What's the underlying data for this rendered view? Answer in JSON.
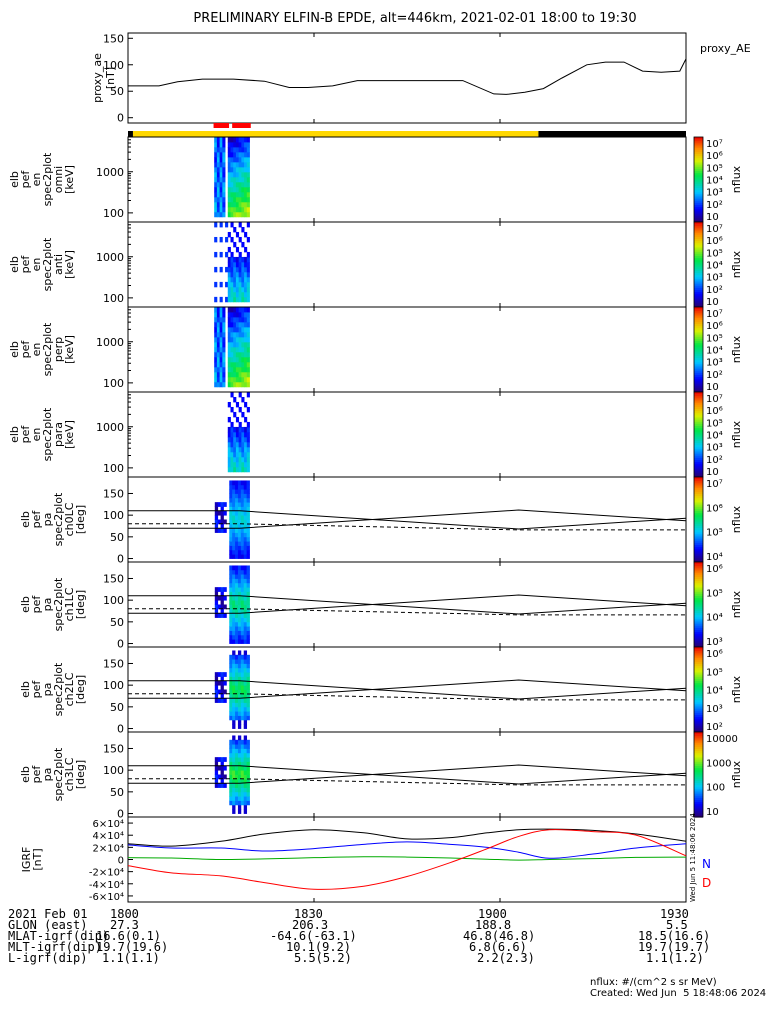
{
  "title": "PRELIMINARY ELFIN-B EPDE, alt=446km, 2021-02-01 18:00 to 19:30",
  "time_axis": {
    "start_min": 0,
    "end_min": 90,
    "ticks": [
      "1800",
      "1830",
      "1900",
      "1930"
    ]
  },
  "footer": {
    "rows": [
      {
        "label": "2021 Feb 01",
        "values": [
          "1800",
          "1830",
          "1900",
          "1930"
        ]
      },
      {
        "label": "GLON (east)",
        "values": [
          "27.3",
          "206.3",
          "188.8",
          "5.5"
        ]
      },
      {
        "label": "MLAT-igrf(dip)",
        "values": [
          "16.6(0.1)",
          "-64.6(-63.1)",
          "46.8(46.8)",
          "18.5(16.6)"
        ]
      },
      {
        "label": "MLT-igrf(dip)",
        "values": [
          "19.7(19.6)",
          "10.1(9.2)",
          "6.8(6.6)",
          "19.7(19.7)"
        ]
      },
      {
        "label": "L-igrf(dip)",
        "values": [
          "1.1(1.1)",
          "5.5(5.2)",
          "2.2(2.3)",
          "1.1(1.2)"
        ]
      }
    ],
    "units_note": "nflux: #/(cm^2 s sr MeV)",
    "created": "Created: Wed Jun  5 18:48:06 2024",
    "side_stamp": "Wed Jun  5 11:48:06 2024"
  },
  "colors": {
    "N": "#0000ff",
    "D": "#ff0000",
    "E": "#00aa00",
    "total": "#000000",
    "yellow": "#ffd800",
    "red": "#ff0000"
  },
  "chart_data": [
    {
      "type": "line",
      "name": "proxy_ae",
      "legend": "proxy_AE",
      "ylabel_lines": [
        "proxy_ae",
        "[nT]"
      ],
      "ylim": [
        -10,
        160
      ],
      "yticks": [
        "0",
        "50",
        "100",
        "150"
      ],
      "x": [
        0,
        3,
        5,
        8,
        12,
        17,
        22,
        26,
        29,
        33,
        37,
        43,
        51,
        54,
        59,
        61,
        64,
        67,
        70,
        74,
        77,
        80,
        83,
        86,
        89,
        90
      ],
      "values": [
        60,
        60,
        60,
        68,
        73,
        73,
        69,
        57,
        57,
        60,
        70,
        70,
        70,
        70,
        45,
        44,
        48,
        55,
        75,
        100,
        105,
        105,
        88,
        86,
        88,
        111
      ]
    },
    {
      "type": "bar",
      "name": "science-zone-bar",
      "segments": [
        {
          "start": 0,
          "end": 0.8,
          "color": "#000000"
        },
        {
          "start": 0.8,
          "end": 66.2,
          "color": "#ffd800"
        },
        {
          "start": 66.2,
          "end": 90,
          "color": "#000000"
        }
      ],
      "markers": [
        {
          "start": 13.8,
          "end": 16.3
        },
        {
          "start": 16.8,
          "end": 19.8
        }
      ]
    },
    {
      "type": "heatmap",
      "name": "spectrogram-omni",
      "ylabel_lines": [
        "elb",
        "pef",
        "en",
        "spec2plot",
        "omni",
        "[keV]"
      ],
      "yscale": "log",
      "ylim": [
        60,
        7000
      ],
      "yticks": [
        "100",
        "1000"
      ],
      "x_range": [
        13.9,
        19.6
      ],
      "colorbar": {
        "label": "nflux",
        "ticks": [
          "10",
          "10²",
          "10³",
          "10⁴",
          "10⁵",
          "10⁶",
          "10⁷"
        ]
      }
    },
    {
      "type": "heatmap",
      "name": "spectrogram-anti",
      "ylabel_lines": [
        "elb",
        "pef",
        "en",
        "spec2plot",
        "anti",
        "[keV]"
      ],
      "yscale": "log",
      "ylim": [
        60,
        7000
      ],
      "yticks": [
        "100",
        "1000"
      ],
      "x_range": [
        13.9,
        19.6
      ],
      "colorbar": {
        "label": "nflux",
        "ticks": [
          "10",
          "10²",
          "10³",
          "10⁴",
          "10⁵",
          "10⁶",
          "10⁷"
        ]
      }
    },
    {
      "type": "heatmap",
      "name": "spectrogram-perp",
      "ylabel_lines": [
        "elb",
        "pef",
        "en",
        "spec2plot",
        "perp",
        "[keV]"
      ],
      "yscale": "log",
      "ylim": [
        60,
        7000
      ],
      "yticks": [
        "100",
        "1000"
      ],
      "x_range": [
        13.9,
        19.6
      ],
      "colorbar": {
        "label": "nflux",
        "ticks": [
          "10",
          "10²",
          "10³",
          "10⁴",
          "10⁵",
          "10⁶",
          "10⁷"
        ]
      }
    },
    {
      "type": "heatmap",
      "name": "spectrogram-para",
      "ylabel_lines": [
        "elb",
        "pef",
        "en",
        "spec2plot",
        "para",
        "[keV]"
      ],
      "yscale": "log",
      "ylim": [
        60,
        7000
      ],
      "yticks": [
        "100",
        "1000"
      ],
      "x_range": [
        13.9,
        19.6
      ],
      "colorbar": {
        "label": "nflux",
        "ticks": [
          "10",
          "10²",
          "10³",
          "10⁴",
          "10⁵",
          "10⁶",
          "10⁷"
        ]
      }
    },
    {
      "type": "heatmap",
      "name": "pitch-angle-ch0",
      "ylabel_lines": [
        "elb",
        "pef",
        "pa",
        "spec2plot",
        "ch0LC",
        "[deg]"
      ],
      "ylim": [
        -8,
        188
      ],
      "yticks": [
        "0",
        "50",
        "100",
        "150"
      ],
      "x_range": [
        14.0,
        19.6
      ],
      "losscone_x": [
        0,
        18,
        63,
        90
      ],
      "losscone_y": [
        110,
        110,
        68,
        93
      ],
      "antilosscone_y": [
        70,
        70,
        112,
        87
      ],
      "dashed_y": [
        80,
        80,
        66,
        66
      ],
      "colorbar": {
        "label": "nflux",
        "ticks": [
          "10⁴",
          "10⁵",
          "10⁶",
          "10⁷"
        ]
      }
    },
    {
      "type": "heatmap",
      "name": "pitch-angle-ch1",
      "ylabel_lines": [
        "elb",
        "pef",
        "pa",
        "spec2plot",
        "ch1LC",
        "[deg]"
      ],
      "ylim": [
        -8,
        188
      ],
      "yticks": [
        "0",
        "50",
        "100",
        "150"
      ],
      "x_range": [
        14.0,
        19.6
      ],
      "losscone_x": [
        0,
        18,
        63,
        90
      ],
      "losscone_y": [
        110,
        110,
        68,
        93
      ],
      "antilosscone_y": [
        70,
        70,
        112,
        87
      ],
      "dashed_y": [
        80,
        80,
        66,
        66
      ],
      "colorbar": {
        "label": "nflux",
        "ticks": [
          "10³",
          "10⁴",
          "10⁵",
          "10⁶"
        ]
      }
    },
    {
      "type": "heatmap",
      "name": "pitch-angle-ch2",
      "ylabel_lines": [
        "elb",
        "pef",
        "pa",
        "spec2plot",
        "ch2LC",
        "[deg]"
      ],
      "ylim": [
        -8,
        188
      ],
      "yticks": [
        "0",
        "50",
        "100",
        "150"
      ],
      "x_range": [
        14.0,
        19.6
      ],
      "losscone_x": [
        0,
        18,
        63,
        90
      ],
      "losscone_y": [
        110,
        110,
        68,
        93
      ],
      "antilosscone_y": [
        70,
        70,
        112,
        87
      ],
      "dashed_y": [
        80,
        80,
        66,
        66
      ],
      "colorbar": {
        "label": "nflux",
        "ticks": [
          "10²",
          "10³",
          "10⁴",
          "10⁵",
          "10⁶"
        ]
      }
    },
    {
      "type": "heatmap",
      "name": "pitch-angle-ch3",
      "ylabel_lines": [
        "elb",
        "pef",
        "pa",
        "spec2plot",
        "ch3LC",
        "[deg]"
      ],
      "ylim": [
        -8,
        188
      ],
      "yticks": [
        "0",
        "50",
        "100",
        "150"
      ],
      "x_range": [
        14.0,
        19.6
      ],
      "losscone_x": [
        0,
        18,
        63,
        90
      ],
      "losscone_y": [
        110,
        110,
        68,
        93
      ],
      "antilosscone_y": [
        70,
        70,
        112,
        87
      ],
      "dashed_y": [
        80,
        80,
        66,
        66
      ],
      "colorbar": {
        "label": "nflux",
        "ticks": [
          "10",
          "100",
          "1000",
          "10000"
        ]
      }
    },
    {
      "type": "line",
      "name": "igrf",
      "ylabel_lines": [
        "IGRF",
        "[nT]"
      ],
      "ylim": [
        -70000,
        70000
      ],
      "yticks": [
        "-6×10⁴",
        "-4×10⁴",
        "-2×10⁴",
        "0",
        "2×10⁴",
        "4×10⁴",
        "6×10⁴"
      ],
      "x": [
        0,
        7,
        15,
        22,
        30,
        38,
        45,
        52,
        58,
        63,
        68,
        75,
        82,
        90
      ],
      "series": [
        {
          "name": "total",
          "values": [
            26000,
            22000,
            30000,
            42000,
            49000,
            44000,
            34000,
            36000,
            44000,
            49000,
            50000,
            48000,
            42000,
            30000
          ]
        },
        {
          "name": "N",
          "values": [
            24000,
            19000,
            19000,
            14000,
            18000,
            25000,
            29000,
            25000,
            20000,
            12000,
            2000,
            9000,
            19000,
            26000
          ]
        },
        {
          "name": "E",
          "values": [
            3000,
            2500,
            0,
            1000,
            3000,
            4500,
            4000,
            2500,
            500,
            -1000,
            0,
            1500,
            3500,
            4000
          ]
        },
        {
          "name": "D",
          "values": [
            -10000,
            -22000,
            -27000,
            -38000,
            -49000,
            -44000,
            -28000,
            -5000,
            18000,
            38000,
            49000,
            46000,
            40000,
            6000
          ]
        }
      ],
      "legend": [
        "N",
        "D"
      ]
    }
  ]
}
